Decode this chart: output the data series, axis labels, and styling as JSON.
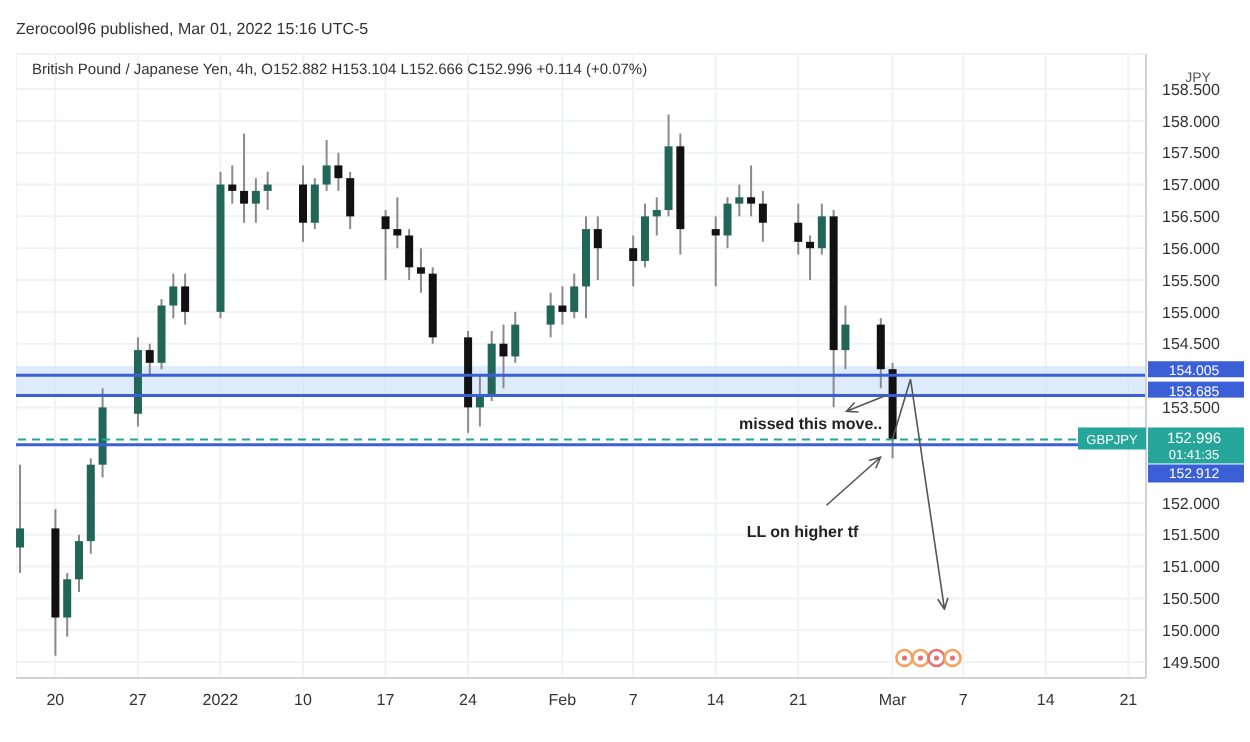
{
  "chart_data": {
    "type": "candlestick",
    "subtitle": "Zerocool96 published, Mar 01, 2022 15:16 UTC-5",
    "title": "British Pound / Japanese Yen, 4h, O152.882 H153.104 L152.666 C152.996 +0.114 (+0.07%)",
    "ylabel": "JPY",
    "x": [
      "2021-12-17",
      "2021-12-20",
      "2021-12-21",
      "2021-12-22",
      "2021-12-23",
      "2021-12-24",
      "2021-12-27",
      "2021-12-28",
      "2021-12-29",
      "2021-12-30",
      "2021-12-31",
      "2022-01-03",
      "2022-01-04",
      "2022-01-05",
      "2022-01-06",
      "2022-01-07",
      "2022-01-10",
      "2022-01-11",
      "2022-01-12",
      "2022-01-13",
      "2022-01-14",
      "2022-01-17",
      "2022-01-18",
      "2022-01-19",
      "2022-01-20",
      "2022-01-21",
      "2022-01-24",
      "2022-01-25",
      "2022-01-26",
      "2022-01-27",
      "2022-01-28",
      "2022-01-31",
      "2022-02-01",
      "2022-02-02",
      "2022-02-03",
      "2022-02-04",
      "2022-02-07",
      "2022-02-08",
      "2022-02-09",
      "2022-02-10",
      "2022-02-11",
      "2022-02-14",
      "2022-02-15",
      "2022-02-16",
      "2022-02-17",
      "2022-02-18",
      "2022-02-21",
      "2022-02-22",
      "2022-02-23",
      "2022-02-24",
      "2022-02-25",
      "2022-02-28",
      "2022-03-01"
    ],
    "ohlc": [
      [
        151.3,
        152.6,
        150.9,
        151.6
      ],
      [
        151.6,
        151.9,
        149.6,
        150.2
      ],
      [
        150.2,
        150.9,
        149.9,
        150.8
      ],
      [
        150.8,
        151.5,
        150.6,
        151.4
      ],
      [
        151.4,
        152.7,
        151.2,
        152.6
      ],
      [
        152.6,
        153.8,
        152.4,
        153.5
      ],
      [
        153.4,
        154.6,
        153.2,
        154.4
      ],
      [
        154.4,
        154.5,
        154.0,
        154.2
      ],
      [
        154.2,
        155.2,
        154.1,
        155.1
      ],
      [
        155.1,
        155.6,
        154.9,
        155.4
      ],
      [
        155.4,
        155.6,
        154.8,
        155.0
      ],
      [
        155.0,
        157.2,
        154.9,
        157.0
      ],
      [
        157.0,
        157.3,
        156.7,
        156.9
      ],
      [
        156.9,
        157.8,
        156.4,
        156.7
      ],
      [
        156.7,
        157.1,
        156.4,
        156.9
      ],
      [
        156.9,
        157.2,
        156.6,
        157.0
      ],
      [
        157.0,
        157.3,
        156.1,
        156.4
      ],
      [
        156.4,
        157.1,
        156.3,
        157.0
      ],
      [
        157.0,
        157.7,
        156.9,
        157.3
      ],
      [
        157.3,
        157.5,
        156.9,
        157.1
      ],
      [
        157.1,
        157.2,
        156.3,
        156.5
      ],
      [
        156.5,
        156.6,
        155.5,
        156.3
      ],
      [
        156.3,
        156.8,
        156.0,
        156.2
      ],
      [
        156.2,
        156.3,
        155.5,
        155.7
      ],
      [
        155.7,
        156.0,
        155.3,
        155.6
      ],
      [
        155.6,
        155.7,
        154.5,
        154.6
      ],
      [
        154.6,
        154.7,
        153.1,
        153.5
      ],
      [
        153.5,
        154.0,
        153.2,
        153.7
      ],
      [
        153.7,
        154.7,
        153.6,
        154.5
      ],
      [
        154.5,
        154.8,
        153.8,
        154.3
      ],
      [
        154.3,
        155.0,
        154.2,
        154.8
      ],
      [
        154.8,
        155.3,
        154.6,
        155.1
      ],
      [
        155.1,
        155.4,
        154.8,
        155.0
      ],
      [
        155.0,
        155.6,
        154.9,
        155.4
      ],
      [
        155.4,
        156.5,
        154.9,
        156.3
      ],
      [
        156.3,
        156.5,
        155.5,
        156.0
      ],
      [
        156.0,
        156.2,
        155.4,
        155.8
      ],
      [
        155.8,
        156.7,
        155.7,
        156.5
      ],
      [
        156.5,
        156.8,
        156.2,
        156.6
      ],
      [
        156.6,
        158.1,
        156.5,
        157.6
      ],
      [
        157.6,
        157.8,
        155.9,
        156.3
      ],
      [
        156.3,
        156.5,
        155.4,
        156.2
      ],
      [
        156.2,
        156.8,
        156.0,
        156.7
      ],
      [
        156.7,
        157.0,
        156.5,
        156.8
      ],
      [
        156.8,
        157.3,
        156.5,
        156.7
      ],
      [
        156.7,
        156.9,
        156.1,
        156.4
      ],
      [
        156.4,
        156.7,
        155.9,
        156.1
      ],
      [
        156.1,
        156.2,
        155.5,
        156.0
      ],
      [
        156.0,
        156.7,
        155.9,
        156.5
      ],
      [
        156.5,
        156.6,
        153.5,
        154.4
      ],
      [
        154.4,
        155.1,
        154.1,
        154.8
      ],
      [
        154.8,
        154.9,
        153.8,
        154.1
      ],
      [
        154.1,
        154.2,
        152.7,
        153.0
      ]
    ],
    "colors": [
      "#22665a",
      "#111111",
      "#22665a",
      "#22665a",
      "#22665a",
      "#22665a",
      "#22665a",
      "#111111",
      "#22665a",
      "#22665a",
      "#111111",
      "#22665a",
      "#111111",
      "#111111",
      "#22665a",
      "#22665a",
      "#111111",
      "#22665a",
      "#22665a",
      "#111111",
      "#111111",
      "#111111",
      "#111111",
      "#111111",
      "#111111",
      "#111111",
      "#111111",
      "#22665a",
      "#22665a",
      "#111111",
      "#22665a",
      "#22665a",
      "#111111",
      "#22665a",
      "#22665a",
      "#111111",
      "#111111",
      "#22665a",
      "#22665a",
      "#22665a",
      "#111111",
      "#111111",
      "#22665a",
      "#22665a",
      "#111111",
      "#111111",
      "#111111",
      "#111111",
      "#22665a",
      "#111111",
      "#22665a",
      "#111111",
      "#111111"
    ],
    "xlim": [
      "2021-12-16T16:00",
      "2022-03-22T12:00"
    ],
    "xticks": [
      {
        "value": "2021-12-20",
        "label": "20"
      },
      {
        "value": "2021-12-27",
        "label": "27"
      },
      {
        "value": "2022-01-03",
        "label": "2022"
      },
      {
        "value": "2022-01-10",
        "label": "10"
      },
      {
        "value": "2022-01-17",
        "label": "17"
      },
      {
        "value": "2022-01-24",
        "label": "24"
      },
      {
        "value": "2022-02-01",
        "label": "Feb"
      },
      {
        "value": "2022-02-07",
        "label": "7"
      },
      {
        "value": "2022-02-14",
        "label": "14"
      },
      {
        "value": "2022-02-21",
        "label": "21"
      },
      {
        "value": "2022-03-01",
        "label": "Mar"
      },
      {
        "value": "2022-03-07",
        "label": "7"
      },
      {
        "value": "2022-03-14",
        "label": "14"
      },
      {
        "value": "2022-03-21",
        "label": "21"
      }
    ],
    "ylim": [
      149.25,
      159.05
    ],
    "yticks": [
      {
        "value": 149.5,
        "label": "149.500"
      },
      {
        "value": 150,
        "label": "150.000"
      },
      {
        "value": 150.5,
        "label": "150.500"
      },
      {
        "value": 151,
        "label": "151.000"
      },
      {
        "value": 151.5,
        "label": "151.500"
      },
      {
        "value": 152,
        "label": "152.000"
      },
      {
        "value": 153.5,
        "label": "153.500"
      },
      {
        "value": 154.5,
        "label": "154.500"
      },
      {
        "value": 155,
        "label": "155.000"
      },
      {
        "value": 155.5,
        "label": "155.500"
      },
      {
        "value": 156,
        "label": "156.000"
      },
      {
        "value": 156.5,
        "label": "156.500"
      },
      {
        "value": 157,
        "label": "157.000"
      },
      {
        "value": 157.5,
        "label": "157.500"
      },
      {
        "value": 158,
        "label": "158.000"
      },
      {
        "value": 158.5,
        "label": "158.500"
      }
    ],
    "grid": true,
    "ref_lines": [
      {
        "axis": "y",
        "value": 154.005,
        "label": "154.005",
        "color": "#3a5fd6",
        "line_style": "solid"
      },
      {
        "axis": "y",
        "value": 153.685,
        "label": "153.685",
        "color": "#3a5fd6",
        "line_style": "solid"
      },
      {
        "axis": "y",
        "value": 152.912,
        "label": "152.912",
        "color": "#3a5fd6",
        "line_style": "solid"
      },
      {
        "axis": "y",
        "value": 152.996,
        "label": "GBPJPY",
        "color": "#26a69a",
        "line_style": "dashed"
      }
    ],
    "bands": [
      {
        "axis": "y",
        "from": 153.685,
        "to": 154.15,
        "color": "#cfe2fb"
      }
    ],
    "annotations": [
      "152.996",
      "01:41:35",
      {
        "text": "missed this move..",
        "x": "2022-02-28",
        "y": 153.6
      },
      "LL on higher tf"
    ]
  }
}
